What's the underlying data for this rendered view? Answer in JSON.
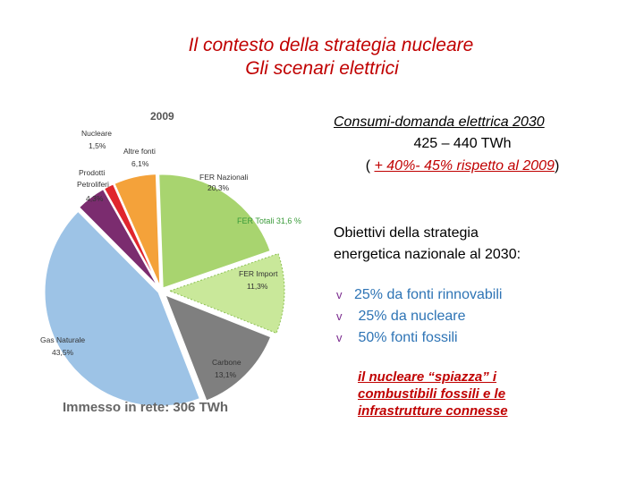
{
  "header": {
    "title_line1": "Il contesto della strategia nucleare",
    "title_line2": "Gli scenari elettrici"
  },
  "chart_data": {
    "type": "pie",
    "title": "2009",
    "footer": "Immesso in rete: 306 TWh",
    "slices": [
      {
        "name": "FER Nazionali",
        "value": 20.3,
        "label": "20,3%",
        "color": "#a8d46f"
      },
      {
        "name": "FER Import",
        "value": 11.3,
        "label": "11,3%",
        "color": "#c9e89a"
      },
      {
        "name": "Carbone",
        "value": 13.1,
        "label": "13,1%",
        "color": "#7f7f7f"
      },
      {
        "name": "Gas Naturale",
        "value": 43.5,
        "label": "43,5%",
        "color": "#9dc3e6"
      },
      {
        "name": "Prodotti Petroliferi",
        "value": 4.3,
        "label": "4,3%",
        "color": "#7b2c6f"
      },
      {
        "name": "Nucleare",
        "value": 1.5,
        "label": "1,5%",
        "color": "#e0262d"
      },
      {
        "name": "Altre fonti",
        "value": 6.1,
        "label": "6,1%",
        "color": "#f4a23a"
      }
    ],
    "annotation": "FER Totali 31,6 %"
  },
  "consumi": {
    "title": "Consumi-domanda  elettrica 2030",
    "range": "425 – 440 TWh",
    "note_open": "( ",
    "note_red": "+ 40%- 45% rispetto al 2009",
    "note_close": ")"
  },
  "obiettivi": {
    "line1": "Obiettivi  della strategia",
    "line2": "energetica nazionale al 2030:"
  },
  "targets": [
    {
      "bullet": "v",
      "text": "25% da fonti rinnovabili"
    },
    {
      "bullet": "v",
      "text": " 25% da nucleare"
    },
    {
      "bullet": "v",
      "text": " 50% fonti fossili"
    }
  ],
  "conclusion": {
    "line1": "il nucleare “spiazza”  i",
    "line2": "combustibili fossili e le",
    "line3": "infrastrutture connesse"
  }
}
